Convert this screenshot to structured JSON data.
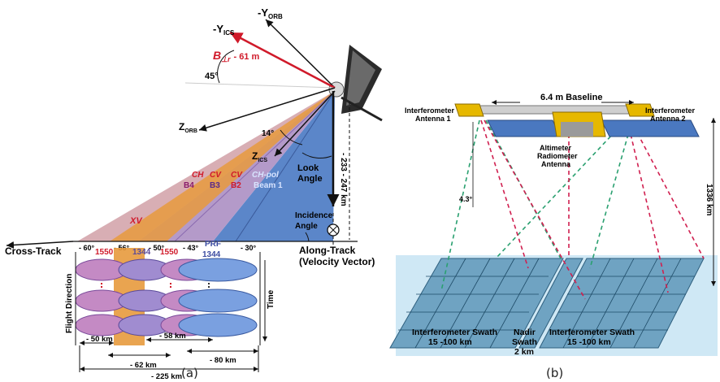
{
  "panel_a": {
    "caption": "(a)",
    "y_orb": "-Y",
    "y_orb_sub": "ORB",
    "y_ics": "-Y",
    "y_ics_sub": "ICS",
    "b_perp": "B",
    "b_perp_sub": "⊥r",
    "b_perp_value": "- 61 m",
    "angle_45": "45°",
    "z_orb": "Z",
    "z_orb_sub": "ORB",
    "angle_14": "14°",
    "z_ics": "Z",
    "z_ics_sub": "ICS",
    "look_angle_1": "Look",
    "look_angle_2": "Angle",
    "altitude_range": "- 233 - 247 km",
    "beams": {
      "ch_b4": "CH",
      "b4": "B4",
      "cv_b3": "CV",
      "b3": "B3",
      "cv_b2": "CV",
      "b2": "B2",
      "chpol": "CH-pol",
      "beam1": "Beam 1"
    },
    "xv": "XV",
    "incidence_1": "Incidence",
    "incidence_2": "Angle",
    "cross_track": "Cross-Track",
    "angles": [
      "- 60°",
      "- 56°",
      "- 50°",
      "- 43°",
      "- 30°"
    ],
    "along_track_1": "Along-Track",
    "along_track_2": "(Velocity Vector)",
    "prf_1550_a": "1550",
    "prf_1344_a": "1344",
    "prf_1550_b": "1550",
    "prf_label": "PRF",
    "prf_1344_b": "1344",
    "flight_direction": "Flight Direction",
    "time": "Time",
    "dist_50": "- 50 km",
    "dist_58": "- 58 km",
    "dist_62": "- 62 km",
    "dist_80": "- 80 km",
    "dist_225": "- 225 km"
  },
  "panel_b": {
    "caption": "(b)",
    "baseline": "6.4 m Baseline",
    "ant1_1": "Interferometer",
    "ant1_2": "Antenna 1",
    "ant2_1": "Interferometer",
    "ant2_2": "Antenna 2",
    "alt_1": "Altimeter",
    "alt_2": "Radiometer",
    "alt_3": "Antenna",
    "angle": "4.3°",
    "height": "1336 km",
    "swath_l_1": "Interferometer Swath",
    "swath_l_2": "15 -100 km",
    "nadir_1": "Nadir",
    "nadir_2": "Swath",
    "nadir_3": "2 km",
    "swath_r_1": "Interferometer Swath",
    "swath_r_2": "15 -100 km"
  },
  "colors": {
    "beam_blue": "#5b86c9",
    "beam_purple": "#b49ac9",
    "beam_orange": "#e79a3d",
    "red_label": "#d01a2a",
    "dash_green": "#2aa070",
    "dash_red": "#d02050",
    "sea": "#cfe8f5",
    "grid": "#5a8fae"
  }
}
